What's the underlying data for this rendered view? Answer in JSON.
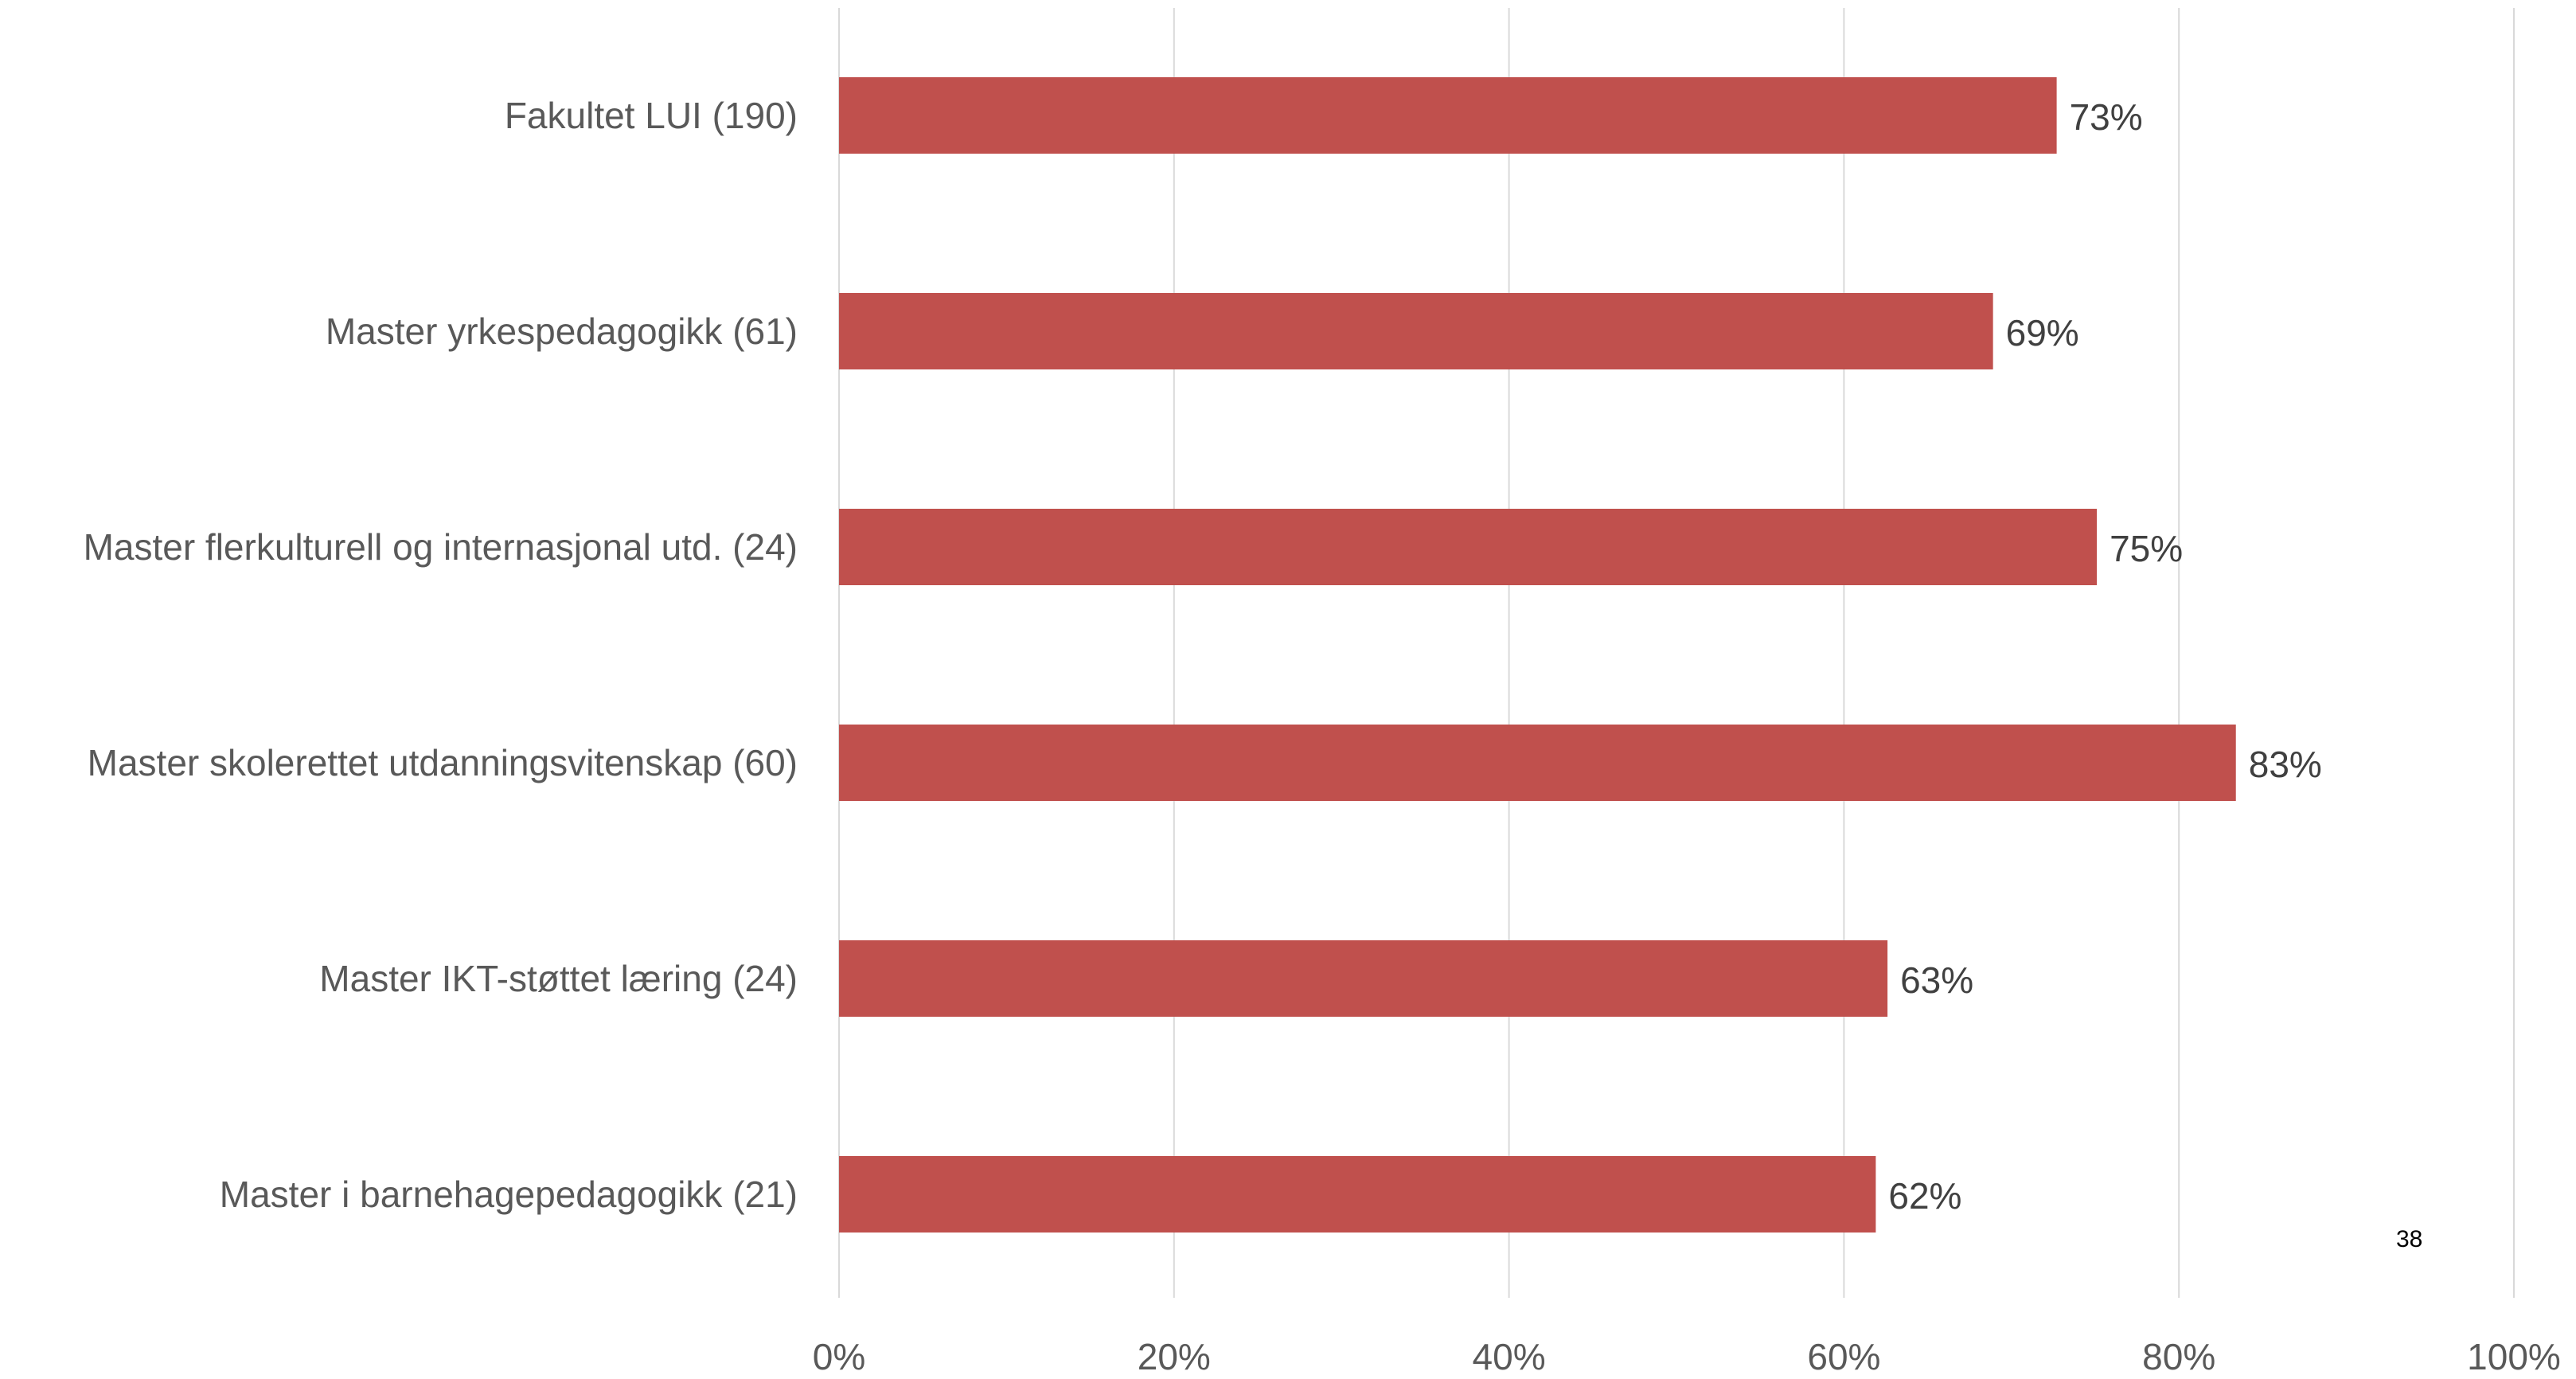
{
  "colors": {
    "bar": "#c0504d",
    "gridline": "#d9d9d9",
    "category_text": "#595959",
    "data_label_text": "#404040"
  },
  "page_number": "38",
  "chart_data": {
    "type": "bar",
    "orientation": "horizontal",
    "categories": [
      "Fakultet LUI (190)",
      "Master yrkespedagogikk (61)",
      "Master flerkulturell og internasjonal utd. (24)",
      "Master skolerettet utdanningsvitenskap (60)",
      "Master IKT-støttet læring (24)",
      "Master i barnehagepedagogikk (21)"
    ],
    "values": [
      0.727,
      0.689,
      0.751,
      0.834,
      0.626,
      0.619
    ],
    "data_labels": [
      "73%",
      "69%",
      "75%",
      "83%",
      "63%",
      "62%"
    ],
    "x_ticks": [
      0,
      0.2,
      0.4,
      0.6,
      0.8,
      1.0
    ],
    "x_tick_labels": [
      "0%",
      "20%",
      "40%",
      "60%",
      "80%",
      "100%"
    ],
    "xlim": [
      0,
      1
    ],
    "grid": "vertical",
    "legend": "none",
    "title": "",
    "xlabel": "",
    "ylabel": ""
  }
}
